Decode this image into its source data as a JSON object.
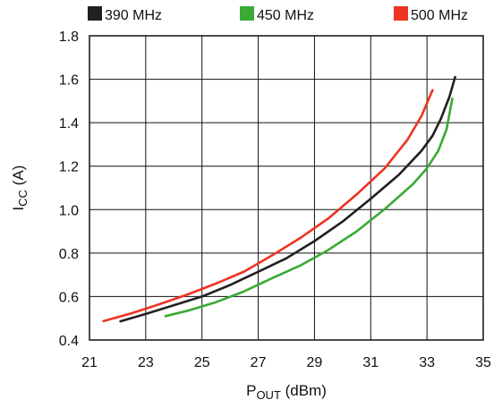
{
  "chart_data": {
    "type": "line",
    "title": "",
    "xlabel": {
      "main": "P",
      "sub": "OUT",
      "unit": " (dBm)"
    },
    "ylabel": {
      "main": "I",
      "sub": "CC",
      "unit": " (A)"
    },
    "xlim": [
      21,
      35
    ],
    "ylim": [
      0.4,
      1.8
    ],
    "xticks": [
      "21",
      "23",
      "25",
      "27",
      "29",
      "31",
      "33",
      "35"
    ],
    "yticks": [
      "0.4",
      "0.6",
      "0.8",
      "1.0",
      "1.2",
      "1.4",
      "1.6",
      "1.8"
    ],
    "grid": true,
    "legend_position": "top",
    "series": [
      {
        "name": "390 MHz",
        "color": "#231f20",
        "points": [
          [
            22.1,
            0.486
          ],
          [
            23,
            0.52
          ],
          [
            24,
            0.56
          ],
          [
            25,
            0.6
          ],
          [
            26,
            0.653
          ],
          [
            27,
            0.714
          ],
          [
            28,
            0.776
          ],
          [
            29,
            0.855
          ],
          [
            30,
            0.945
          ],
          [
            31,
            1.05
          ],
          [
            32,
            1.16
          ],
          [
            32.8,
            1.27
          ],
          [
            33.2,
            1.34
          ],
          [
            33.5,
            1.42
          ],
          [
            33.8,
            1.52
          ],
          [
            34.0,
            1.61
          ]
        ]
      },
      {
        "name": "450 MHz",
        "color": "#3aaa35",
        "points": [
          [
            23.7,
            0.51
          ],
          [
            24.5,
            0.535
          ],
          [
            25.5,
            0.574
          ],
          [
            26.5,
            0.624
          ],
          [
            27.5,
            0.685
          ],
          [
            28.5,
            0.743
          ],
          [
            29.5,
            0.815
          ],
          [
            30.5,
            0.9
          ],
          [
            31.5,
            1.003
          ],
          [
            32.5,
            1.117
          ],
          [
            33.0,
            1.19
          ],
          [
            33.4,
            1.27
          ],
          [
            33.7,
            1.37
          ],
          [
            33.9,
            1.51
          ]
        ]
      },
      {
        "name": "500 MHz",
        "color": "#ee3322",
        "points": [
          [
            21.5,
            0.487
          ],
          [
            22.5,
            0.523
          ],
          [
            23.5,
            0.565
          ],
          [
            24.5,
            0.61
          ],
          [
            25.5,
            0.66
          ],
          [
            26.5,
            0.715
          ],
          [
            27.5,
            0.79
          ],
          [
            28.5,
            0.87
          ],
          [
            29.5,
            0.96
          ],
          [
            30.5,
            1.07
          ],
          [
            31.5,
            1.19
          ],
          [
            32.3,
            1.32
          ],
          [
            32.8,
            1.43
          ],
          [
            33.2,
            1.55
          ]
        ]
      }
    ]
  }
}
